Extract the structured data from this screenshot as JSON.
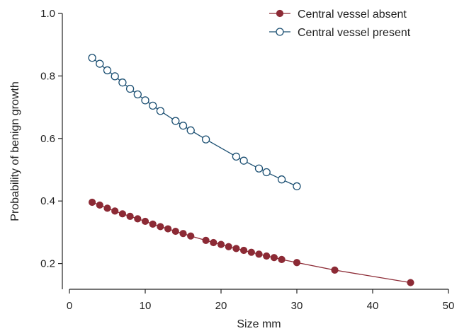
{
  "chart_data": {
    "type": "line",
    "title": "",
    "xlabel": "Size mm",
    "ylabel": "Probability of benign growth",
    "xlim": [
      0,
      50
    ],
    "ylim": [
      0.1,
      1.0
    ],
    "xticks": [
      0,
      10,
      20,
      30,
      40,
      50
    ],
    "xtick_labels": [
      "0",
      "10",
      "20",
      "30",
      "40",
      "50"
    ],
    "yticks": [
      0.2,
      0.4,
      0.6,
      0.8,
      1.0
    ],
    "ytick_labels": [
      "0.2",
      "0.4",
      "0.6",
      "0.8",
      "1.0"
    ],
    "grid": false,
    "legend_position": "top-right",
    "series": [
      {
        "name": "Central vessel absent",
        "color": "#8c2a35",
        "marker": "filled-circle",
        "x": [
          3,
          4,
          5,
          6,
          7,
          8,
          9,
          10,
          11,
          12,
          13,
          14,
          15,
          16,
          18,
          19,
          20,
          21,
          22,
          23,
          24,
          25,
          26,
          27,
          28,
          30,
          35,
          45
        ],
        "y": [
          0.396,
          0.387,
          0.377,
          0.368,
          0.359,
          0.351,
          0.343,
          0.335,
          0.326,
          0.318,
          0.311,
          0.303,
          0.296,
          0.288,
          0.274,
          0.267,
          0.261,
          0.254,
          0.248,
          0.242,
          0.236,
          0.23,
          0.224,
          0.219,
          0.213,
          0.203,
          0.179,
          0.139
        ]
      },
      {
        "name": "Central vessel present",
        "color": "#1b4f72",
        "marker": "open-circle",
        "x": [
          3,
          4,
          5,
          6,
          7,
          8,
          9,
          10,
          11,
          12,
          14,
          15,
          16,
          18,
          22,
          23,
          25,
          26,
          28,
          30
        ],
        "y": [
          0.858,
          0.839,
          0.818,
          0.799,
          0.779,
          0.759,
          0.741,
          0.722,
          0.705,
          0.688,
          0.656,
          0.641,
          0.626,
          0.597,
          0.542,
          0.529,
          0.504,
          0.492,
          0.469,
          0.447
        ]
      }
    ]
  }
}
